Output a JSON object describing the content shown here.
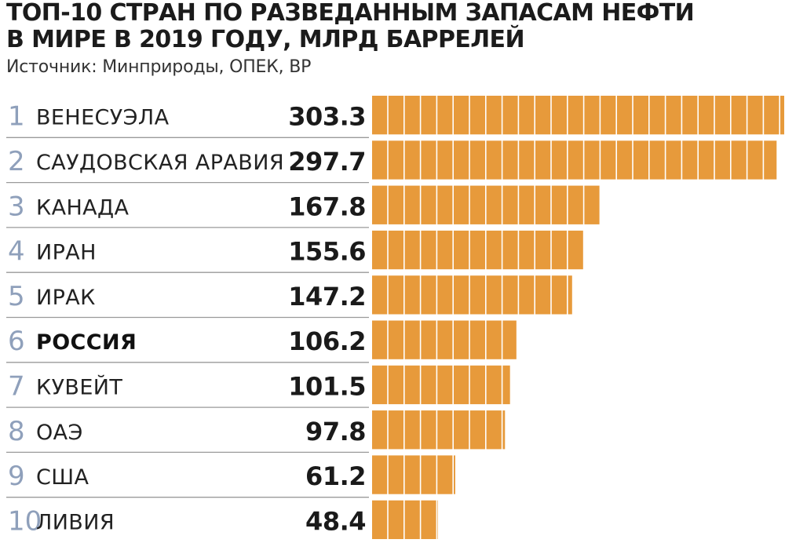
{
  "chart_data": {
    "type": "bar",
    "orientation": "horizontal",
    "title_lines": [
      "ТОП-10 СТРАН ПО РАЗВЕДАННЫМ ЗАПАСАМ НЕФТИ",
      "В МИРЕ В 2019 ГОДУ, МЛРД БАРРЕЛЕЙ"
    ],
    "source": "Источник: Минприроды, ОПЕК, BP",
    "ranks": [
      "1",
      "2",
      "3",
      "4",
      "5",
      "6",
      "7",
      "8",
      "9",
      "10"
    ],
    "categories": [
      "ВЕНЕСУЭЛА",
      "САУДОВСКАЯ АРАВИЯ",
      "КАНАДА",
      "ИРАН",
      "ИРАК",
      "РОССИЯ",
      "КУВЕЙТ",
      "ОАЭ",
      "США",
      "ЛИВИЯ"
    ],
    "value_labels": [
      "303.3",
      "297.7",
      "167.8",
      "155.6",
      "147.2",
      "106.2",
      "101.5",
      "97.8",
      "61.2",
      "48.4"
    ],
    "values": [
      303.3,
      297.7,
      167.8,
      155.6,
      147.2,
      106.2,
      101.5,
      97.8,
      61.2,
      48.4
    ],
    "highlight": "РОССИЯ",
    "bar_color": "#e79a3b",
    "rank_color": "#8fa0bb"
  }
}
